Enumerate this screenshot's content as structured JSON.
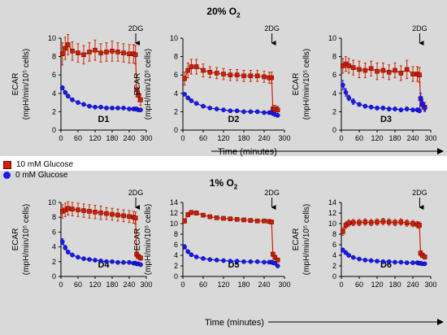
{
  "panels": [
    {
      "title_main": "20% O",
      "title_sub": "2"
    },
    {
      "title_main": "1% O",
      "title_sub": "2"
    }
  ],
  "time_axis_label": "Time (minutes)",
  "legend": [
    {
      "label": "10 mM Glucose",
      "color": "#cc2200",
      "marker": "square"
    },
    {
      "label": "0 mM Glucose",
      "color": "#1a1aee",
      "marker": "circle"
    }
  ],
  "chart_data": [
    {
      "type": "line",
      "title": "D1",
      "xlabel": "",
      "ylabel": "ECAR",
      "ylabel2": "(mpH/min/10⁵ cells)",
      "xlim": [
        0,
        300
      ],
      "ylim": [
        0,
        10
      ],
      "xticks": [
        0,
        60,
        120,
        180,
        240,
        300
      ],
      "yticks": [
        0,
        2,
        4,
        6,
        8,
        10
      ],
      "annotation": {
        "text": "2DG",
        "x": 263
      },
      "series": [
        {
          "name": "10 mM Glucose",
          "x": [
            5,
            15,
            25,
            40,
            60,
            80,
            100,
            120,
            140,
            160,
            180,
            200,
            220,
            240,
            255,
            262,
            266,
            272,
            280
          ],
          "y": [
            8.3,
            8.9,
            9.3,
            8.6,
            8.4,
            8.2,
            8.5,
            8.7,
            8.4,
            8.5,
            8.6,
            8.5,
            8.4,
            8.3,
            8.3,
            8.2,
            4.4,
            3.8,
            3.3
          ],
          "err": [
            1.2,
            1.2,
            1.1,
            1.0,
            1.0,
            1.0,
            1.0,
            1.1,
            1.0,
            1.0,
            1.1,
            1.0,
            1.0,
            1.0,
            1.0,
            1.0,
            0.8,
            0.7,
            0.6
          ]
        },
        {
          "name": "0 mM Glucose",
          "x": [
            5,
            15,
            25,
            40,
            60,
            80,
            100,
            120,
            140,
            160,
            180,
            200,
            220,
            240,
            255,
            262,
            266,
            272,
            280
          ],
          "y": [
            4.6,
            4.1,
            3.7,
            3.3,
            3.0,
            2.8,
            2.6,
            2.5,
            2.5,
            2.4,
            2.4,
            2.4,
            2.4,
            2.3,
            2.3,
            2.3,
            2.3,
            2.2,
            2.2
          ],
          "err": [
            0.2,
            0.2,
            0.2,
            0.2,
            0.15,
            0.15,
            0.15,
            0.15,
            0.15,
            0.15,
            0.15,
            0.15,
            0.15,
            0.15,
            0.15,
            0.15,
            0.15,
            0.15,
            0.15
          ]
        }
      ]
    },
    {
      "type": "line",
      "title": "D2",
      "xlabel": "",
      "ylabel": "ECAR",
      "ylabel2": "(mpH/min/10⁵ cells)",
      "xlim": [
        0,
        300
      ],
      "ylim": [
        0,
        10
      ],
      "xticks": [
        0,
        60,
        120,
        180,
        240,
        300
      ],
      "yticks": [
        0,
        2,
        4,
        6,
        8,
        10
      ],
      "annotation": {
        "text": "2DG",
        "x": 263
      },
      "series": [
        {
          "name": "10 mM Glucose",
          "x": [
            5,
            15,
            25,
            40,
            60,
            80,
            100,
            120,
            140,
            160,
            180,
            200,
            220,
            240,
            255,
            262,
            266,
            272,
            280
          ],
          "y": [
            5.6,
            6.5,
            6.9,
            6.9,
            6.5,
            6.3,
            6.2,
            6.1,
            6.0,
            6.0,
            5.9,
            5.9,
            5.9,
            5.8,
            5.7,
            5.7,
            2.3,
            2.3,
            2.2
          ],
          "err": [
            0.7,
            0.8,
            0.8,
            0.8,
            0.7,
            0.6,
            0.6,
            0.6,
            0.6,
            0.6,
            0.6,
            0.6,
            0.6,
            0.6,
            0.6,
            0.6,
            0.4,
            0.4,
            0.4
          ]
        },
        {
          "name": "0 mM Glucose",
          "x": [
            5,
            15,
            25,
            40,
            60,
            80,
            100,
            120,
            140,
            160,
            180,
            200,
            220,
            240,
            255,
            262,
            266,
            272,
            280
          ],
          "y": [
            3.9,
            3.5,
            3.2,
            2.9,
            2.6,
            2.4,
            2.3,
            2.2,
            2.1,
            2.1,
            2.0,
            2.0,
            2.0,
            1.9,
            1.9,
            1.9,
            1.8,
            1.7,
            1.6
          ],
          "err": [
            0.15,
            0.15,
            0.15,
            0.15,
            0.12,
            0.12,
            0.12,
            0.12,
            0.12,
            0.12,
            0.12,
            0.12,
            0.12,
            0.12,
            0.12,
            0.12,
            0.12,
            0.12,
            0.12
          ]
        }
      ]
    },
    {
      "type": "line",
      "title": "D3",
      "xlabel": "",
      "ylabel": "ECAR",
      "ylabel2": "(mpH/min/10⁵ cells)",
      "xlim": [
        0,
        300
      ],
      "ylim": [
        0,
        10
      ],
      "xticks": [
        0,
        60,
        120,
        180,
        240,
        300
      ],
      "yticks": [
        0,
        2,
        4,
        6,
        8,
        10
      ],
      "annotation": {
        "text": "2DG",
        "x": 263
      },
      "series": [
        {
          "name": "10 mM Glucose",
          "x": [
            5,
            15,
            25,
            40,
            60,
            80,
            100,
            120,
            140,
            160,
            180,
            200,
            220,
            240,
            255,
            262,
            266,
            272,
            280
          ],
          "y": [
            7.0,
            7.2,
            7.0,
            6.8,
            6.6,
            6.5,
            6.7,
            6.4,
            6.5,
            6.3,
            6.5,
            6.2,
            6.6,
            6.1,
            6.1,
            6.0,
            3.4,
            2.8,
            2.5
          ],
          "err": [
            0.8,
            0.8,
            0.8,
            0.8,
            0.9,
            0.8,
            0.8,
            0.9,
            0.8,
            0.8,
            0.8,
            0.8,
            1.0,
            0.8,
            0.8,
            0.8,
            0.6,
            0.5,
            0.5
          ]
        },
        {
          "name": "0 mM Glucose",
          "x": [
            5,
            15,
            25,
            40,
            60,
            80,
            100,
            120,
            140,
            160,
            180,
            200,
            220,
            240,
            255,
            262,
            266,
            272,
            280
          ],
          "y": [
            4.9,
            4.1,
            3.5,
            3.1,
            2.8,
            2.6,
            2.5,
            2.4,
            2.4,
            2.3,
            2.3,
            2.2,
            2.3,
            2.2,
            2.2,
            2.1,
            3.5,
            2.9,
            2.4
          ],
          "err": [
            0.5,
            0.4,
            0.3,
            0.3,
            0.2,
            0.2,
            0.2,
            0.2,
            0.2,
            0.2,
            0.2,
            0.2,
            0.2,
            0.2,
            0.2,
            0.2,
            0.5,
            0.4,
            0.3
          ]
        }
      ]
    },
    {
      "type": "line",
      "title": "D4",
      "xlabel": "",
      "ylabel": "ECAR",
      "ylabel2": "(mpH/min/10⁵ cells)",
      "xlim": [
        0,
        300
      ],
      "ylim": [
        0,
        10
      ],
      "xticks": [
        0,
        60,
        120,
        180,
        240,
        300
      ],
      "yticks": [
        0,
        2,
        4,
        6,
        8,
        10
      ],
      "annotation": {
        "text": "2DG",
        "x": 263
      },
      "series": [
        {
          "name": "10 mM Glucose",
          "x": [
            5,
            15,
            25,
            40,
            60,
            80,
            100,
            120,
            140,
            160,
            180,
            200,
            220,
            240,
            255,
            262,
            266,
            272,
            280
          ],
          "y": [
            8.8,
            9.0,
            9.2,
            9.1,
            9.0,
            8.9,
            8.8,
            8.7,
            8.6,
            8.5,
            8.4,
            8.3,
            8.2,
            8.1,
            8.0,
            7.9,
            3.0,
            2.7,
            2.5
          ],
          "err": [
            0.9,
            0.9,
            0.9,
            0.9,
            0.9,
            0.9,
            0.9,
            0.9,
            0.9,
            0.8,
            0.8,
            0.8,
            0.8,
            0.8,
            0.8,
            0.8,
            0.4,
            0.3,
            0.3
          ]
        },
        {
          "name": "0 mM Glucose",
          "x": [
            5,
            15,
            25,
            40,
            60,
            80,
            100,
            120,
            140,
            160,
            180,
            200,
            220,
            240,
            255,
            262,
            266,
            272,
            280
          ],
          "y": [
            4.7,
            3.9,
            3.3,
            2.9,
            2.6,
            2.4,
            2.3,
            2.2,
            2.1,
            2.0,
            2.0,
            1.9,
            1.9,
            1.9,
            1.8,
            1.8,
            1.7,
            1.7,
            1.6
          ],
          "err": [
            0.4,
            0.3,
            0.25,
            0.2,
            0.15,
            0.15,
            0.15,
            0.15,
            0.15,
            0.15,
            0.15,
            0.15,
            0.15,
            0.15,
            0.15,
            0.15,
            0.15,
            0.15,
            0.15
          ]
        }
      ]
    },
    {
      "type": "line",
      "title": "D5",
      "xlabel": "",
      "ylabel": "ECAR",
      "ylabel2": "(mpH/min/10⁵ cells)",
      "xlim": [
        0,
        300
      ],
      "ylim": [
        0,
        14
      ],
      "xticks": [
        0,
        60,
        120,
        180,
        240,
        300
      ],
      "yticks": [
        0,
        2,
        4,
        6,
        8,
        10,
        12,
        14
      ],
      "annotation": {
        "text": "2DG",
        "x": 263
      },
      "series": [
        {
          "name": "10 mM Glucose",
          "x": [
            5,
            15,
            25,
            40,
            60,
            80,
            100,
            120,
            140,
            160,
            180,
            200,
            220,
            240,
            255,
            262,
            266,
            272,
            280
          ],
          "y": [
            10.5,
            11.7,
            12.1,
            12.0,
            11.6,
            11.3,
            11.1,
            11.0,
            10.9,
            10.8,
            10.7,
            10.6,
            10.5,
            10.5,
            10.4,
            10.3,
            4.2,
            3.6,
            3.1
          ],
          "err": [
            0.4,
            0.4,
            0.4,
            0.4,
            0.3,
            0.3,
            0.3,
            0.3,
            0.3,
            0.3,
            0.3,
            0.3,
            0.3,
            0.3,
            0.3,
            0.3,
            0.4,
            0.4,
            0.3
          ]
        },
        {
          "name": "0 mM Glucose",
          "x": [
            5,
            15,
            25,
            40,
            60,
            80,
            100,
            120,
            140,
            160,
            180,
            200,
            220,
            240,
            255,
            262,
            266,
            272,
            280
          ],
          "y": [
            5.6,
            4.7,
            4.1,
            3.7,
            3.4,
            3.2,
            3.1,
            3.0,
            2.9,
            2.9,
            2.8,
            2.8,
            2.8,
            2.7,
            2.7,
            2.7,
            2.6,
            2.5,
            2.0
          ],
          "err": [
            0.4,
            0.3,
            0.3,
            0.25,
            0.2,
            0.2,
            0.2,
            0.2,
            0.2,
            0.2,
            0.2,
            0.2,
            0.2,
            0.2,
            0.2,
            0.2,
            0.2,
            0.2,
            0.2
          ]
        }
      ]
    },
    {
      "type": "line",
      "title": "D6",
      "xlabel": "",
      "ylabel": "ECAR",
      "ylabel2": "(mpH/min/10⁵ cells)",
      "xlim": [
        0,
        300
      ],
      "ylim": [
        0,
        14
      ],
      "xticks": [
        0,
        60,
        120,
        180,
        240,
        300
      ],
      "yticks": [
        0,
        2,
        4,
        6,
        8,
        10,
        12,
        14
      ],
      "annotation": {
        "text": "2DG",
        "x": 263
      },
      "series": [
        {
          "name": "10 mM Glucose",
          "x": [
            5,
            15,
            25,
            40,
            60,
            80,
            100,
            120,
            140,
            160,
            180,
            200,
            220,
            240,
            255,
            262,
            266,
            272,
            280
          ],
          "y": [
            8.5,
            9.7,
            10.1,
            10.2,
            10.2,
            10.3,
            10.2,
            10.3,
            10.4,
            10.3,
            10.2,
            10.3,
            10.1,
            10.0,
            9.8,
            9.7,
            4.4,
            4.0,
            3.7
          ],
          "err": [
            0.7,
            0.6,
            0.6,
            0.6,
            0.6,
            0.6,
            0.6,
            0.6,
            0.6,
            0.6,
            0.6,
            0.6,
            0.6,
            0.6,
            0.6,
            0.6,
            0.5,
            0.4,
            0.4
          ]
        },
        {
          "name": "0 mM Glucose",
          "x": [
            5,
            15,
            25,
            40,
            60,
            80,
            100,
            120,
            140,
            160,
            180,
            200,
            220,
            240,
            255,
            262,
            266,
            272,
            280
          ],
          "y": [
            5.0,
            4.5,
            4.0,
            3.6,
            3.3,
            3.1,
            3.0,
            2.9,
            2.8,
            2.8,
            2.7,
            2.7,
            2.6,
            2.6,
            2.6,
            2.5,
            2.5,
            2.4,
            2.4
          ],
          "err": [
            0.35,
            0.3,
            0.3,
            0.25,
            0.2,
            0.2,
            0.2,
            0.2,
            0.2,
            0.2,
            0.2,
            0.2,
            0.2,
            0.2,
            0.2,
            0.2,
            0.2,
            0.2,
            0.2
          ]
        }
      ]
    }
  ]
}
